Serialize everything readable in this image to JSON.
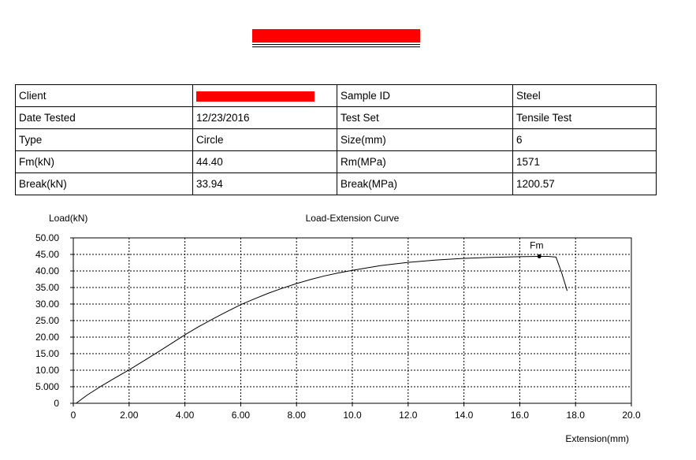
{
  "table": {
    "rows": [
      {
        "label1": "Client",
        "value1": "",
        "label2": "Sample ID",
        "value2": "Steel"
      },
      {
        "label1": "Date Tested",
        "value1": "12/23/2016",
        "label2": "Test Set",
        "value2": "Tensile Test"
      },
      {
        "label1": "Type",
        "value1": "Circle",
        "label2": "Size(mm)",
        "value2": "6"
      },
      {
        "label1": "Fm(kN)",
        "value1": "44.40",
        "label2": "Rm(MPa)",
        "value2": "1571"
      },
      {
        "label1": "Break(kN)",
        "value1": "33.94",
        "label2": "Break(MPa)",
        "value2": "1200.57"
      }
    ]
  },
  "chart_data": {
    "type": "line",
    "title": "Load-Extension Curve",
    "xlabel": "Extension(mm)",
    "ylabel": "Load(kN)",
    "xlim": [
      0,
      20
    ],
    "ylim": [
      0,
      50
    ],
    "grid": true,
    "x_ticks": [
      "0",
      "2.00",
      "4.00",
      "6.00",
      "8.00",
      "10.0",
      "12.0",
      "14.0",
      "16.0",
      "18.0",
      "20.0"
    ],
    "y_ticks": [
      "0",
      "5.000",
      "10.00",
      "15.00",
      "20.00",
      "25.00",
      "30.00",
      "35.00",
      "40.00",
      "45.00",
      "50.00"
    ],
    "series": [
      {
        "x": [
          0.1,
          0.5,
          1.0,
          1.5,
          2.0,
          2.5,
          3.0,
          3.5,
          4.0,
          4.5,
          5.0,
          5.5,
          6.0,
          6.5,
          7.0,
          7.5,
          8.0,
          8.5,
          9.0,
          9.5,
          10.0,
          11.0,
          12.0,
          13.0,
          14.0,
          15.0,
          16.0,
          16.7,
          17.0,
          17.3,
          17.5,
          17.7
        ],
        "y": [
          0,
          2.5,
          5.2,
          7.7,
          10.1,
          12.7,
          15.3,
          18.0,
          20.7,
          23.2,
          25.5,
          27.7,
          29.8,
          31.6,
          33.3,
          34.8,
          36.2,
          37.4,
          38.5,
          39.4,
          40.2,
          41.6,
          42.6,
          43.3,
          43.8,
          44.1,
          44.3,
          44.4,
          44.4,
          44.2,
          39.5,
          34.0
        ]
      }
    ],
    "annotations": [
      {
        "text": "Fm",
        "x": 16.7,
        "y": 44.4
      }
    ]
  }
}
